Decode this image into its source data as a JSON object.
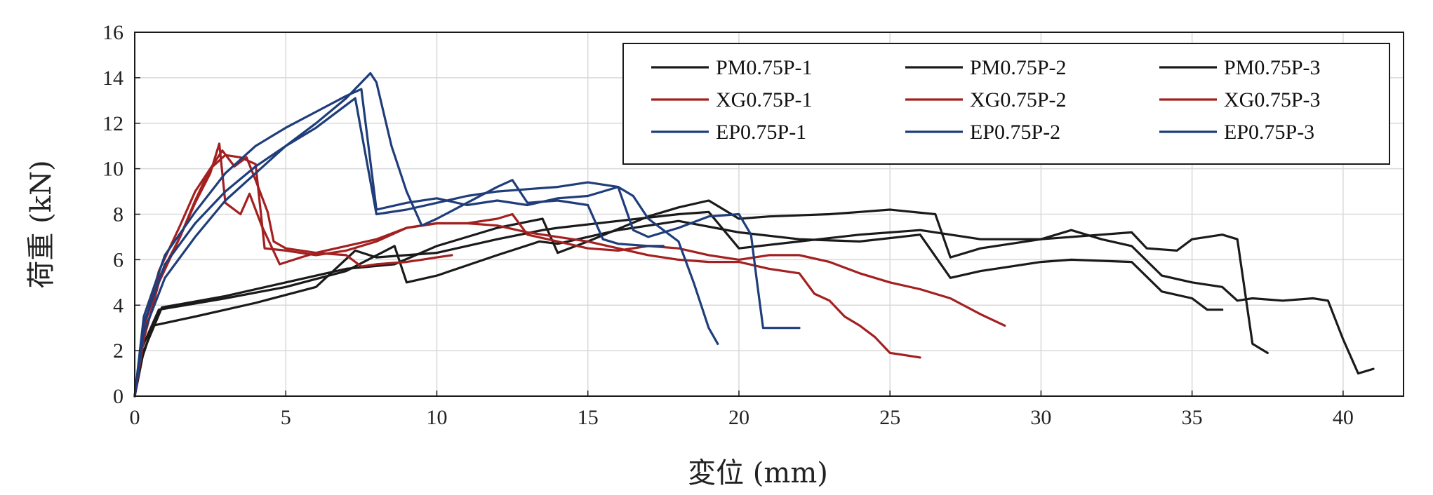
{
  "chart_data": {
    "type": "line",
    "title": "",
    "xlabel": "変位 (mm)",
    "ylabel": "荷重 (kN)",
    "xlim": [
      0,
      42
    ],
    "ylim": [
      0,
      16
    ],
    "xticks": [
      0,
      5,
      10,
      15,
      20,
      25,
      30,
      35,
      40
    ],
    "yticks": [
      0,
      2,
      4,
      6,
      8,
      10,
      12,
      14,
      16
    ],
    "grid": true,
    "legend_position": "top-right",
    "series": [
      {
        "name": "PM0.75P-1",
        "color": "#1a1a1a",
        "points": [
          [
            0,
            0
          ],
          [
            0.2,
            2
          ],
          [
            0.8,
            3.8
          ],
          [
            3,
            4.3
          ],
          [
            5,
            4.8
          ],
          [
            7,
            5.5
          ],
          [
            8.6,
            6.6
          ],
          [
            9,
            5
          ],
          [
            10,
            5.3
          ],
          [
            12,
            6.2
          ],
          [
            13.4,
            6.8
          ],
          [
            14,
            6.7
          ],
          [
            16,
            7.3
          ],
          [
            18,
            7.7
          ],
          [
            20,
            7.2
          ],
          [
            22,
            6.9
          ],
          [
            24,
            6.8
          ],
          [
            26,
            7.1
          ],
          [
            27,
            5.2
          ],
          [
            28,
            5.5
          ],
          [
            30,
            5.9
          ],
          [
            31,
            6.0
          ],
          [
            33,
            5.9
          ],
          [
            34,
            4.6
          ],
          [
            35,
            4.3
          ],
          [
            35.5,
            3.8
          ],
          [
            36,
            3.8
          ]
        ]
      },
      {
        "name": "PM0.75P-2",
        "color": "#1a1a1a",
        "points": [
          [
            0,
            0
          ],
          [
            0.2,
            1.5
          ],
          [
            0.6,
            3.1
          ],
          [
            2,
            3.5
          ],
          [
            4,
            4.1
          ],
          [
            6,
            4.8
          ],
          [
            7.3,
            6.4
          ],
          [
            8,
            6.1
          ],
          [
            10,
            6.3
          ],
          [
            12,
            6.9
          ],
          [
            13.5,
            7.3
          ],
          [
            14,
            7.4
          ],
          [
            16,
            7.7
          ],
          [
            18,
            8.0
          ],
          [
            19,
            8.1
          ],
          [
            20,
            6.5
          ],
          [
            22,
            6.8
          ],
          [
            24,
            7.1
          ],
          [
            26,
            7.3
          ],
          [
            27,
            7.1
          ],
          [
            28,
            6.9
          ],
          [
            30,
            6.9
          ],
          [
            31,
            7.3
          ],
          [
            32,
            6.9
          ],
          [
            33,
            6.6
          ],
          [
            34,
            5.3
          ],
          [
            35,
            5.0
          ],
          [
            36,
            4.8
          ],
          [
            36.5,
            4.2
          ],
          [
            37,
            4.3
          ],
          [
            38,
            4.2
          ],
          [
            39,
            4.3
          ],
          [
            39.5,
            4.2
          ],
          [
            40,
            2.5
          ],
          [
            40.5,
            1.0
          ],
          [
            41,
            1.2
          ]
        ]
      },
      {
        "name": "PM0.75P-3",
        "color": "#1a1a1a",
        "points": [
          [
            0,
            0
          ],
          [
            0.3,
            2
          ],
          [
            0.9,
            3.9
          ],
          [
            3,
            4.4
          ],
          [
            5,
            5
          ],
          [
            7,
            5.6
          ],
          [
            8.6,
            5.8
          ],
          [
            10,
            6.6
          ],
          [
            12,
            7.4
          ],
          [
            13.5,
            7.8
          ],
          [
            14,
            6.3
          ],
          [
            15,
            6.8
          ],
          [
            17,
            7.9
          ],
          [
            18,
            8.3
          ],
          [
            19,
            8.6
          ],
          [
            20,
            7.8
          ],
          [
            21,
            7.9
          ],
          [
            23,
            8.0
          ],
          [
            24,
            8.1
          ],
          [
            25,
            8.2
          ],
          [
            26.5,
            8.0
          ],
          [
            27,
            6.1
          ],
          [
            28,
            6.5
          ],
          [
            30,
            6.9
          ],
          [
            32,
            7.1
          ],
          [
            33,
            7.2
          ],
          [
            33.5,
            6.5
          ],
          [
            34.5,
            6.4
          ],
          [
            35,
            6.9
          ],
          [
            36,
            7.1
          ],
          [
            36.5,
            6.9
          ],
          [
            37,
            2.3
          ],
          [
            37.5,
            1.9
          ]
        ]
      },
      {
        "name": "XG0.75P-1",
        "color": "#a32020",
        "points": [
          [
            0,
            0
          ],
          [
            0.3,
            3
          ],
          [
            0.8,
            5.5
          ],
          [
            1.5,
            7.5
          ],
          [
            2,
            9
          ],
          [
            2.5,
            10
          ],
          [
            3,
            10.6
          ],
          [
            3.5,
            10.5
          ],
          [
            4,
            10.2
          ],
          [
            4.3,
            6.5
          ],
          [
            5,
            6.4
          ],
          [
            6,
            6.2
          ],
          [
            7,
            6.4
          ],
          [
            8,
            6.8
          ],
          [
            9,
            7.4
          ],
          [
            10,
            7.6
          ],
          [
            11,
            7.6
          ],
          [
            12,
            7.5
          ],
          [
            13,
            7.2
          ],
          [
            14,
            7
          ],
          [
            15,
            6.8
          ],
          [
            16,
            6.5
          ],
          [
            17,
            6.2
          ],
          [
            18,
            6
          ],
          [
            19,
            5.9
          ],
          [
            20,
            5.9
          ],
          [
            21,
            5.6
          ],
          [
            22,
            5.4
          ],
          [
            22.5,
            4.5
          ],
          [
            23,
            4.2
          ],
          [
            23.5,
            3.5
          ],
          [
            24,
            3.1
          ],
          [
            24.5,
            2.6
          ],
          [
            25,
            1.9
          ],
          [
            25.5,
            1.8
          ],
          [
            26,
            1.7
          ]
        ]
      },
      {
        "name": "XG0.75P-2",
        "color": "#a32020",
        "points": [
          [
            0,
            0
          ],
          [
            0.3,
            3
          ],
          [
            0.8,
            5.2
          ],
          [
            1.5,
            7
          ],
          [
            2,
            8.5
          ],
          [
            2.5,
            9.8
          ],
          [
            2.8,
            11.1
          ],
          [
            3,
            8.5
          ],
          [
            3.5,
            8.0
          ],
          [
            3.8,
            8.9
          ],
          [
            4.2,
            7.5
          ],
          [
            4.8,
            5.8
          ],
          [
            5.5,
            6.1
          ],
          [
            6,
            6.3
          ],
          [
            7,
            6.6
          ],
          [
            8,
            6.9
          ],
          [
            9,
            7.4
          ],
          [
            10,
            7.6
          ],
          [
            11,
            7.6
          ],
          [
            12,
            7.8
          ],
          [
            12.5,
            8.0
          ],
          [
            13,
            7.1
          ],
          [
            14,
            6.8
          ],
          [
            15,
            6.5
          ],
          [
            16,
            6.4
          ],
          [
            17,
            6.6
          ],
          [
            18,
            6.5
          ],
          [
            19,
            6.2
          ],
          [
            20,
            6.0
          ],
          [
            21,
            6.2
          ],
          [
            22,
            6.2
          ],
          [
            23,
            5.9
          ],
          [
            24,
            5.4
          ],
          [
            25,
            5.0
          ],
          [
            26,
            4.7
          ],
          [
            27,
            4.3
          ],
          [
            28,
            3.6
          ],
          [
            28.8,
            3.1
          ]
        ]
      },
      {
        "name": "XG0.75P-3",
        "color": "#a32020",
        "points": [
          [
            0,
            0
          ],
          [
            0.3,
            2.5
          ],
          [
            0.8,
            5
          ],
          [
            1.5,
            7
          ],
          [
            2,
            8.6
          ],
          [
            2.5,
            10.0
          ],
          [
            2.9,
            10.8
          ],
          [
            3.3,
            10.1
          ],
          [
            3.7,
            10.5
          ],
          [
            4,
            9.5
          ],
          [
            4.4,
            8.1
          ],
          [
            4.6,
            6.8
          ],
          [
            5,
            6.5
          ],
          [
            6,
            6.3
          ],
          [
            7,
            6.2
          ],
          [
            7.5,
            5.7
          ],
          [
            8,
            5.8
          ],
          [
            9,
            5.9
          ],
          [
            9.5,
            6.0
          ],
          [
            10,
            6.1
          ],
          [
            10.5,
            6.2
          ]
        ]
      },
      {
        "name": "EP0.75P-1",
        "color": "#1f3d7a",
        "points": [
          [
            0,
            0
          ],
          [
            0.3,
            3.5
          ],
          [
            1,
            6.2
          ],
          [
            2,
            8.1
          ],
          [
            3,
            9.8
          ],
          [
            4,
            11.0
          ],
          [
            5,
            11.8
          ],
          [
            6,
            12.5
          ],
          [
            7,
            13.2
          ],
          [
            7.5,
            13.5
          ],
          [
            8,
            8.2
          ],
          [
            9,
            8.5
          ],
          [
            10,
            8.7
          ],
          [
            11,
            8.4
          ],
          [
            12,
            8.6
          ],
          [
            13,
            8.4
          ],
          [
            14,
            8.7
          ],
          [
            15,
            8.8
          ],
          [
            16,
            9.2
          ],
          [
            16.5,
            8.8
          ],
          [
            17,
            7.8
          ],
          [
            18,
            6.8
          ],
          [
            18.5,
            5.0
          ],
          [
            19,
            3.0
          ],
          [
            19.3,
            2.3
          ]
        ]
      },
      {
        "name": "EP0.75P-2",
        "color": "#1f3d7a",
        "points": [
          [
            0,
            0
          ],
          [
            0.3,
            3.2
          ],
          [
            1,
            5.8
          ],
          [
            2,
            7.6
          ],
          [
            3,
            9.0
          ],
          [
            4,
            10.1
          ],
          [
            5,
            11.0
          ],
          [
            6,
            11.8
          ],
          [
            7,
            12.8
          ],
          [
            7.3,
            13.1
          ],
          [
            8,
            8.0
          ],
          [
            9,
            8.2
          ],
          [
            10,
            8.5
          ],
          [
            11,
            8.8
          ],
          [
            12,
            9.0
          ],
          [
            13,
            9.1
          ],
          [
            14,
            9.2
          ],
          [
            15,
            9.4
          ],
          [
            16,
            9.2
          ],
          [
            16.5,
            7.3
          ],
          [
            17,
            7.0
          ],
          [
            18,
            7.4
          ],
          [
            19,
            7.9
          ],
          [
            20,
            8.0
          ],
          [
            20.4,
            7.1
          ],
          [
            20.6,
            5.0
          ],
          [
            20.8,
            3.0
          ],
          [
            21.5,
            3.0
          ],
          [
            22,
            3.0
          ]
        ]
      },
      {
        "name": "EP0.75P-3",
        "color": "#1f3d7a",
        "points": [
          [
            0,
            0
          ],
          [
            0.3,
            2.8
          ],
          [
            1,
            5.2
          ],
          [
            2,
            7.0
          ],
          [
            3,
            8.6
          ],
          [
            4,
            9.8
          ],
          [
            5,
            11.0
          ],
          [
            6,
            12.0
          ],
          [
            7,
            13.1
          ],
          [
            7.8,
            14.2
          ],
          [
            8,
            13.8
          ],
          [
            8.5,
            11
          ],
          [
            9,
            9
          ],
          [
            9.5,
            7.5
          ],
          [
            10,
            7.8
          ],
          [
            11,
            8.5
          ],
          [
            12,
            9.2
          ],
          [
            12.5,
            9.5
          ],
          [
            13,
            8.5
          ],
          [
            14,
            8.6
          ],
          [
            15,
            8.4
          ],
          [
            15.5,
            6.9
          ],
          [
            16,
            6.7
          ],
          [
            17,
            6.6
          ],
          [
            17.5,
            6.6
          ]
        ]
      }
    ]
  }
}
